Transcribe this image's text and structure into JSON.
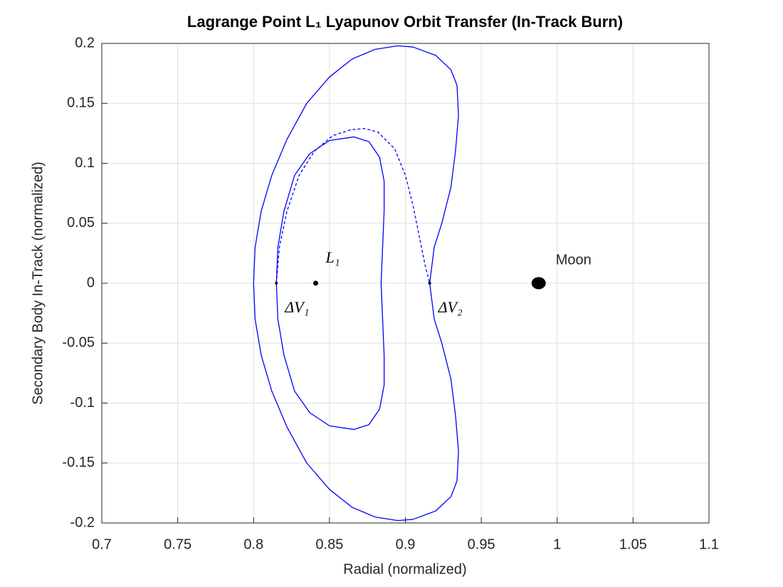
{
  "chart_data": {
    "type": "line",
    "title": "Lagrange Point L₁ Lyapunov Orbit Transfer (In-Track Burn)",
    "x_label": "Radial (normalized)",
    "y_label": "Secondary Body In-Track (normalized)",
    "xlim": [
      0.7,
      1.1
    ],
    "ylim": [
      -0.2,
      0.2
    ],
    "xticks": [
      0.7,
      0.75,
      0.8,
      0.85,
      0.9,
      0.95,
      1,
      1.05,
      1.1
    ],
    "yticks": [
      -0.2,
      -0.15,
      -0.1,
      -0.05,
      0,
      0.05,
      0.1,
      0.15,
      0.2
    ],
    "grid": true,
    "series": [
      {
        "color": "#0000ff",
        "dashed": false,
        "x": [
          0.916,
          0.919,
          0.924,
          0.93,
          0.933,
          0.935,
          0.934,
          0.93,
          0.92,
          0.905,
          0.895,
          0.88,
          0.865,
          0.85,
          0.835,
          0.822,
          0.812,
          0.805,
          0.801,
          0.8,
          0.801,
          0.805,
          0.812,
          0.822,
          0.835,
          0.85,
          0.865,
          0.88,
          0.895,
          0.905,
          0.92,
          0.93,
          0.934,
          0.935,
          0.933,
          0.93,
          0.924,
          0.919,
          0.916
        ],
        "values": [
          0,
          0.03,
          0.05,
          0.08,
          0.11,
          0.14,
          0.165,
          0.178,
          0.19,
          0.197,
          0.198,
          0.195,
          0.187,
          0.172,
          0.15,
          0.12,
          0.09,
          0.06,
          0.03,
          0,
          -0.03,
          -0.06,
          -0.09,
          -0.12,
          -0.15,
          -0.172,
          -0.187,
          -0.195,
          -0.198,
          -0.197,
          -0.19,
          -0.178,
          -0.165,
          -0.14,
          -0.11,
          -0.08,
          -0.05,
          -0.03,
          0
        ]
      },
      {
        "color": "#0000ff",
        "dashed": false,
        "x": [
          0.884,
          0.885,
          0.886,
          0.886,
          0.883,
          0.876,
          0.866,
          0.85,
          0.837,
          0.827,
          0.82,
          0.816,
          0.815,
          0.816,
          0.82,
          0.827,
          0.837,
          0.85,
          0.866,
          0.876,
          0.883,
          0.886,
          0.886,
          0.885,
          0.884
        ],
        "values": [
          0,
          0.03,
          0.06,
          0.085,
          0.105,
          0.118,
          0.122,
          0.119,
          0.108,
          0.09,
          0.06,
          0.03,
          0,
          -0.03,
          -0.06,
          -0.09,
          -0.108,
          -0.119,
          -0.122,
          -0.118,
          -0.105,
          -0.085,
          -0.06,
          -0.03,
          0
        ]
      },
      {
        "color": "#0000ff",
        "dashed": true,
        "x": [
          0.815,
          0.817,
          0.822,
          0.83,
          0.84,
          0.852,
          0.864,
          0.873,
          0.882,
          0.893,
          0.9,
          0.905,
          0.909,
          0.913,
          0.916
        ],
        "values": [
          0,
          0.03,
          0.06,
          0.09,
          0.11,
          0.123,
          0.128,
          0.129,
          0.126,
          0.112,
          0.09,
          0.065,
          0.04,
          0.015,
          0
        ]
      }
    ],
    "points": [
      {
        "label": "L₁",
        "x": 0.8409,
        "y": 0
      },
      {
        "label": "ΔV₁",
        "x": 0.815,
        "y": 0
      },
      {
        "label": "ΔV₂",
        "x": 0.916,
        "y": 0
      },
      {
        "label": "Moon",
        "x": 0.9878,
        "y": 0
      }
    ]
  }
}
